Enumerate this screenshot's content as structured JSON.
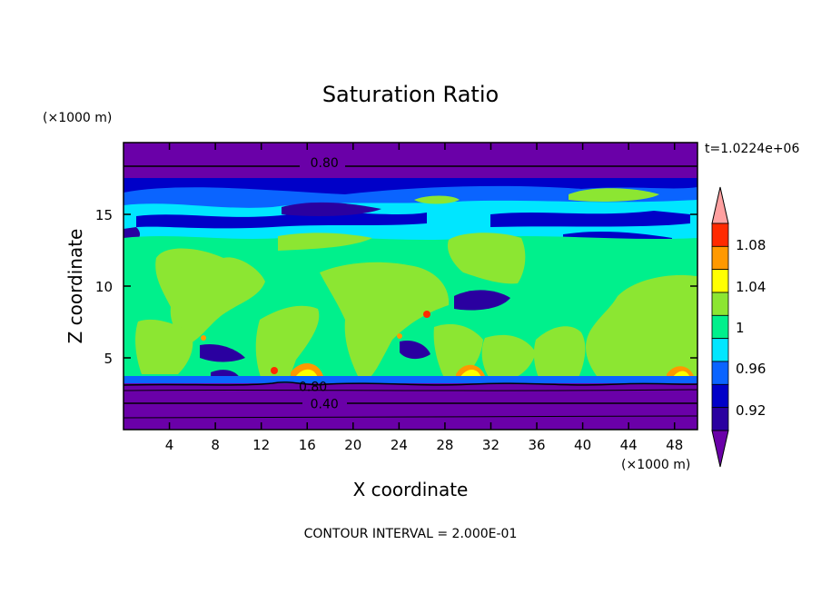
{
  "chart_data": {
    "type": "contour",
    "title": "Saturation Ratio",
    "xlabel": "X coordinate",
    "ylabel": "Z coordinate",
    "x_unit": "(×1000 m)",
    "y_unit": "(×1000 m)",
    "time_label": "t=1.0224e+06",
    "footer": "CONTOUR INTERVAL = 2.000E-01",
    "xlim": [
      0,
      50
    ],
    "ylim": [
      0,
      20
    ],
    "x_ticks": [
      4,
      8,
      12,
      16,
      20,
      24,
      28,
      32,
      36,
      40,
      44,
      48
    ],
    "y_ticks": [
      5,
      10,
      15
    ],
    "contour_labels": [
      {
        "text": "0.80",
        "x": 17.5,
        "z": 18.6
      },
      {
        "text": "0.80",
        "x": 16.5,
        "z": 3.0
      },
      {
        "text": "0.40",
        "x": 17.5,
        "z": 1.8
      }
    ],
    "colorbar": {
      "labels": [
        "0.92",
        "0.96",
        "1",
        "1.04",
        "1.08"
      ],
      "levels": [
        0.9,
        0.92,
        0.94,
        0.96,
        0.98,
        1.0,
        1.02,
        1.04,
        1.06,
        1.08,
        1.1
      ],
      "colors": [
        "#6a00a8",
        "#2a00a0",
        "#0000c8",
        "#0a64ff",
        "#00e6ff",
        "#00f08c",
        "#8ce632",
        "#ffff00",
        "#ff9900",
        "#ff2a00",
        "#ffa0a0"
      ]
    },
    "grid": false
  },
  "colors": {
    "purple": "#6a00a8",
    "navy": "#2a00a0",
    "blue": "#0000c8",
    "sky": "#0a64ff",
    "cyan": "#00e6ff",
    "green": "#00f08c",
    "lime": "#8ce632",
    "yellow": "#ffff00",
    "orange": "#ff9900",
    "red": "#ff2a00",
    "pink": "#ffa0a0"
  }
}
